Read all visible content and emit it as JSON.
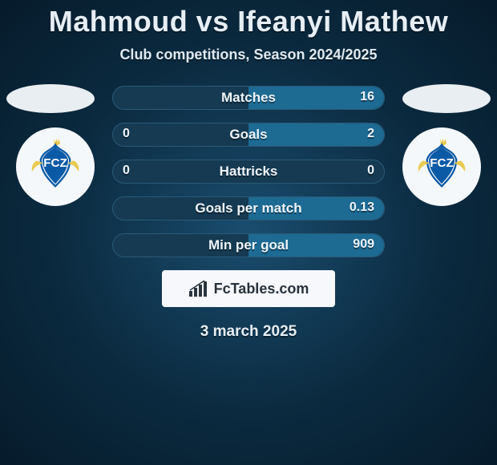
{
  "title": "Mahmoud vs Ifeanyi Mathew",
  "subtitle": "Club competitions, Season 2024/2025",
  "date": "3 march 2025",
  "brand": "FcTables.com",
  "colors": {
    "fill_left": "#1d6a93",
    "fill_right": "#1d6a93",
    "row_bg": "#153a52",
    "row_border": "#2a5a78",
    "crest_primary": "#0b5aa6",
    "crest_secondary": "#e9c94b"
  },
  "rows": [
    {
      "label": "Matches",
      "left": "",
      "right": "16",
      "pctL": 0,
      "pctR": 100
    },
    {
      "label": "Goals",
      "left": "0",
      "right": "2",
      "pctL": 0,
      "pctR": 100
    },
    {
      "label": "Hattricks",
      "left": "0",
      "right": "0",
      "pctL": 0,
      "pctR": 0
    },
    {
      "label": "Goals per match",
      "left": "",
      "right": "0.13",
      "pctL": 0,
      "pctR": 100
    },
    {
      "label": "Min per goal",
      "left": "",
      "right": "909",
      "pctL": 0,
      "pctR": 100
    }
  ]
}
